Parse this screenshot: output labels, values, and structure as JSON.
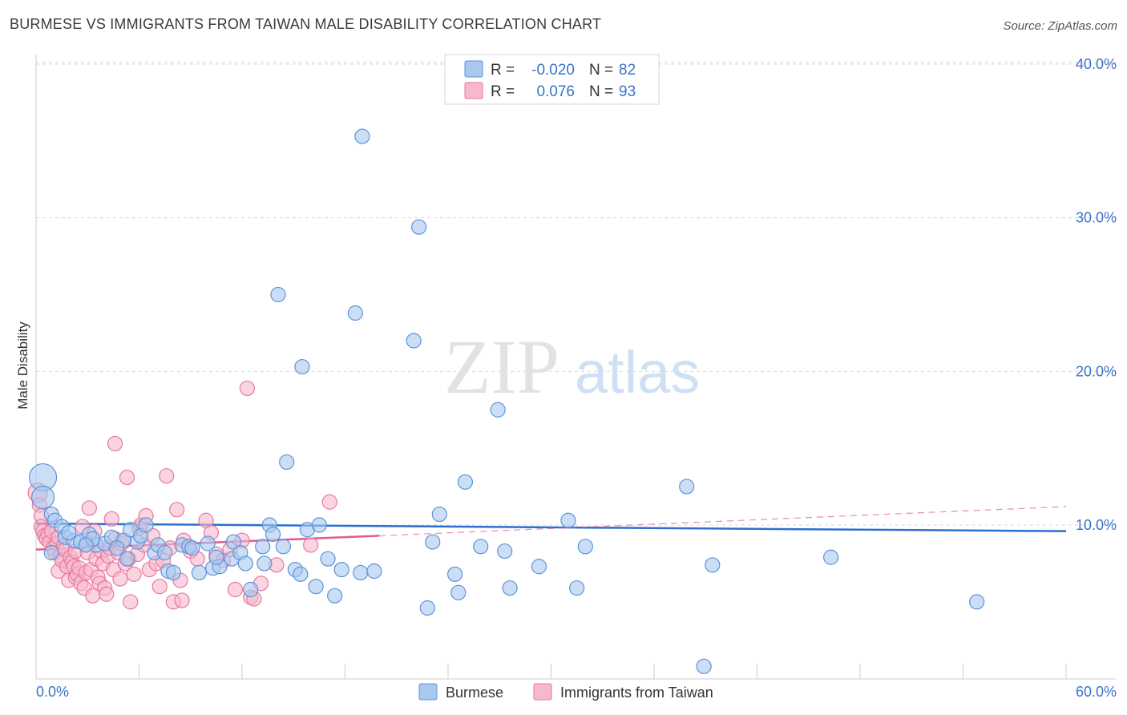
{
  "title": "BURMESE VS IMMIGRANTS FROM TAIWAN MALE DISABILITY CORRELATION CHART",
  "source": "Source: ZipAtlas.com",
  "colors": {
    "blue_fill": "#a9c8f0",
    "blue_stroke": "#5b93d9",
    "blue_line": "#2b6fd0",
    "pink_fill": "#f7b8cc",
    "pink_stroke": "#e8789c",
    "pink_line": "#e55a8a",
    "grid": "#d9d9d9",
    "axis_text": "#3b72c8"
  },
  "watermark": {
    "zip": "ZIP",
    "atlas": "atlas"
  },
  "legend": {
    "r_label": "R =",
    "n_label": "N =",
    "blue": {
      "r": "-0.020",
      "n": "82"
    },
    "pink": {
      "r": "0.076",
      "n": "93"
    }
  },
  "chart_data": {
    "type": "scatter",
    "title": "BURMESE VS IMMIGRANTS FROM TAIWAN MALE DISABILITY CORRELATION CHART",
    "xlabel": "",
    "ylabel": "Male Disability",
    "xlim": [
      0,
      60
    ],
    "ylim": [
      0,
      40
    ],
    "x_tick_labels": [
      "0.0%",
      "60.0%"
    ],
    "y_ticks": [
      10,
      20,
      30,
      40
    ],
    "y_tick_labels": [
      "10.0%",
      "20.0%",
      "30.0%",
      "40.0%"
    ],
    "grid": true,
    "series": [
      {
        "name": "Burmese",
        "color": "blue",
        "trend": {
          "x": [
            0,
            60
          ],
          "y": [
            10.1,
            9.6
          ],
          "style": "solid"
        },
        "points": [
          [
            0.4,
            13.1
          ],
          [
            0.4,
            11.8
          ],
          [
            0.9,
            10.7
          ],
          [
            1.1,
            10.3
          ],
          [
            1.5,
            9.9
          ],
          [
            1.7,
            9.2
          ],
          [
            2.2,
            9.0
          ],
          [
            2.6,
            8.9
          ],
          [
            3.1,
            9.4
          ],
          [
            3.5,
            8.7
          ],
          [
            4.0,
            8.8
          ],
          [
            4.4,
            9.2
          ],
          [
            5.1,
            9.0
          ],
          [
            5.3,
            7.8
          ],
          [
            5.5,
            9.7
          ],
          [
            5.9,
            8.9
          ],
          [
            6.1,
            9.3
          ],
          [
            6.4,
            10.0
          ],
          [
            6.9,
            8.2
          ],
          [
            7.1,
            8.7
          ],
          [
            7.7,
            7.0
          ],
          [
            8.0,
            6.9
          ],
          [
            8.5,
            8.7
          ],
          [
            8.9,
            8.6
          ],
          [
            9.1,
            8.5
          ],
          [
            9.5,
            6.9
          ],
          [
            10.0,
            8.8
          ],
          [
            10.3,
            7.2
          ],
          [
            10.7,
            7.3
          ],
          [
            11.4,
            7.8
          ],
          [
            11.5,
            8.9
          ],
          [
            11.9,
            8.2
          ],
          [
            12.2,
            7.5
          ],
          [
            12.5,
            5.8
          ],
          [
            13.2,
            8.6
          ],
          [
            13.6,
            10.0
          ],
          [
            13.8,
            9.4
          ],
          [
            14.4,
            8.6
          ],
          [
            14.1,
            25.0
          ],
          [
            14.6,
            14.1
          ],
          [
            15.1,
            7.1
          ],
          [
            15.4,
            6.8
          ],
          [
            15.5,
            20.3
          ],
          [
            15.8,
            9.7
          ],
          [
            16.3,
            6.0
          ],
          [
            16.5,
            10.0
          ],
          [
            17.0,
            7.8
          ],
          [
            17.4,
            5.4
          ],
          [
            17.8,
            7.1
          ],
          [
            18.6,
            23.8
          ],
          [
            18.9,
            6.9
          ],
          [
            19.0,
            35.3
          ],
          [
            19.7,
            7.0
          ],
          [
            22.0,
            22.0
          ],
          [
            22.3,
            29.4
          ],
          [
            22.8,
            4.6
          ],
          [
            23.1,
            8.9
          ],
          [
            23.5,
            10.7
          ],
          [
            24.4,
            6.8
          ],
          [
            24.6,
            5.6
          ],
          [
            25.0,
            12.8
          ],
          [
            25.9,
            8.6
          ],
          [
            26.9,
            17.5
          ],
          [
            27.3,
            8.3
          ],
          [
            27.6,
            5.9
          ],
          [
            29.3,
            7.3
          ],
          [
            31.0,
            10.3
          ],
          [
            31.5,
            5.9
          ],
          [
            32.0,
            8.6
          ],
          [
            37.9,
            12.5
          ],
          [
            39.4,
            7.4
          ],
          [
            46.3,
            7.9
          ],
          [
            38.9,
            0.8
          ],
          [
            54.8,
            5.0
          ],
          [
            1.9,
            9.5
          ],
          [
            3.3,
            9.1
          ],
          [
            7.5,
            8.2
          ],
          [
            13.3,
            7.5
          ],
          [
            10.5,
            7.9
          ],
          [
            4.7,
            8.5
          ],
          [
            0.9,
            8.2
          ],
          [
            2.9,
            8.7
          ]
        ]
      },
      {
        "name": "Immigrants from Taiwan",
        "color": "pink",
        "trend": {
          "x": [
            0,
            20
          ],
          "y": [
            8.4,
            9.3
          ],
          "style": "solid",
          "dashed_extension": {
            "x": [
              20,
              60
            ],
            "y": [
              9.3,
              11.2
            ]
          }
        },
        "points": [
          [
            0.1,
            12.1
          ],
          [
            0.2,
            11.3
          ],
          [
            0.3,
            10.6
          ],
          [
            0.3,
            9.9
          ],
          [
            0.4,
            9.6
          ],
          [
            0.5,
            9.3
          ],
          [
            0.6,
            9.1
          ],
          [
            0.7,
            9.4
          ],
          [
            0.8,
            8.9
          ],
          [
            0.9,
            9.6
          ],
          [
            1.0,
            8.5
          ],
          [
            1.1,
            8.2
          ],
          [
            1.2,
            8.8
          ],
          [
            1.3,
            7.0
          ],
          [
            1.3,
            9.2
          ],
          [
            1.4,
            8.0
          ],
          [
            1.5,
            7.7
          ],
          [
            1.6,
            8.6
          ],
          [
            1.7,
            8.4
          ],
          [
            1.8,
            7.3
          ],
          [
            1.9,
            6.4
          ],
          [
            2.0,
            7.9
          ],
          [
            2.1,
            7.6
          ],
          [
            2.2,
            7.3
          ],
          [
            2.3,
            6.6
          ],
          [
            2.3,
            8.3
          ],
          [
            2.4,
            6.8
          ],
          [
            2.5,
            7.2
          ],
          [
            2.6,
            6.2
          ],
          [
            2.7,
            9.9
          ],
          [
            2.8,
            5.9
          ],
          [
            2.9,
            6.9
          ],
          [
            3.0,
            8.8
          ],
          [
            3.0,
            8.2
          ],
          [
            3.1,
            11.1
          ],
          [
            3.2,
            7.1
          ],
          [
            3.3,
            5.4
          ],
          [
            3.4,
            9.6
          ],
          [
            3.5,
            7.8
          ],
          [
            3.6,
            6.6
          ],
          [
            3.7,
            6.2
          ],
          [
            3.8,
            8.3
          ],
          [
            3.9,
            7.5
          ],
          [
            4.0,
            5.9
          ],
          [
            4.1,
            5.5
          ],
          [
            4.2,
            8.0
          ],
          [
            4.3,
            8.5
          ],
          [
            4.4,
            10.4
          ],
          [
            4.5,
            7.1
          ],
          [
            4.6,
            9.1
          ],
          [
            4.6,
            15.3
          ],
          [
            4.8,
            8.2
          ],
          [
            4.9,
            6.5
          ],
          [
            5.0,
            8.8
          ],
          [
            5.1,
            9.0
          ],
          [
            5.2,
            7.5
          ],
          [
            5.3,
            13.1
          ],
          [
            5.4,
            7.8
          ],
          [
            5.5,
            5.0
          ],
          [
            5.7,
            6.8
          ],
          [
            5.9,
            8.1
          ],
          [
            6.0,
            9.8
          ],
          [
            6.1,
            10.0
          ],
          [
            6.3,
            8.7
          ],
          [
            6.4,
            10.6
          ],
          [
            6.6,
            7.1
          ],
          [
            6.8,
            9.3
          ],
          [
            7.0,
            7.5
          ],
          [
            7.2,
            6.0
          ],
          [
            7.4,
            7.7
          ],
          [
            7.6,
            13.2
          ],
          [
            7.8,
            8.5
          ],
          [
            8.0,
            5.0
          ],
          [
            8.2,
            11.0
          ],
          [
            8.4,
            6.4
          ],
          [
            8.5,
            5.1
          ],
          [
            8.6,
            9.0
          ],
          [
            9.0,
            8.3
          ],
          [
            9.4,
            7.8
          ],
          [
            9.9,
            10.3
          ],
          [
            10.2,
            9.5
          ],
          [
            10.5,
            8.1
          ],
          [
            10.9,
            7.7
          ],
          [
            11.3,
            8.4
          ],
          [
            11.6,
            5.8
          ],
          [
            12.0,
            9.0
          ],
          [
            12.3,
            18.9
          ],
          [
            12.5,
            5.3
          ],
          [
            12.7,
            5.2
          ],
          [
            13.1,
            6.2
          ],
          [
            14.0,
            7.4
          ],
          [
            16.0,
            8.7
          ],
          [
            17.1,
            11.5
          ]
        ]
      }
    ],
    "legend_position": "top-center",
    "bottom_legend": [
      "Burmese",
      "Immigrants from Taiwan"
    ]
  }
}
